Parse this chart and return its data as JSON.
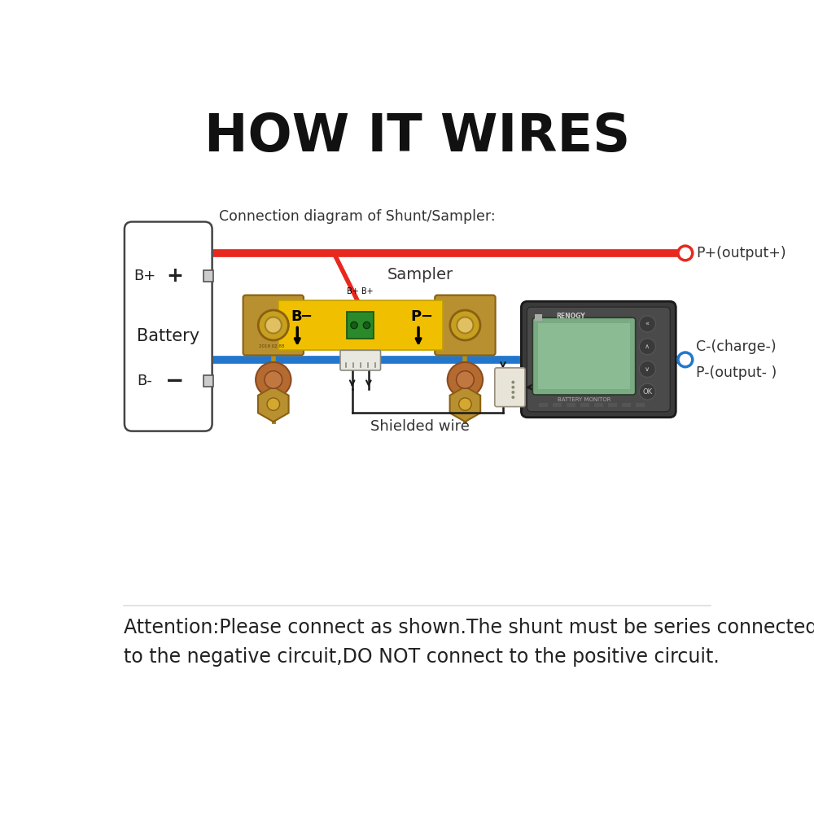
{
  "title": "HOW IT WIRES",
  "title_fontsize": 46,
  "background_color": "#ffffff",
  "attention_text_line1": "Attention:Please connect as shown.The shunt must be series connected",
  "attention_text_line2": "to the negative circuit,DO NOT connect to the positive circuit.",
  "attention_fontsize": 17,
  "connection_diagram_text": "Connection diagram of Shunt/Sampler:",
  "p_plus_label": "P+(output+)",
  "sampler_label": "Sampler",
  "c_minus_label": "C-(charge-)",
  "p_minus_label": "P-(output- )",
  "shielded_wire_label": "Shielded wire",
  "battery_label": "Battery",
  "b_plus_label": "B+",
  "b_minus_label": "B-",
  "red_color": "#e8281e",
  "blue_color": "#2277cc",
  "black_color": "#1a1a1a",
  "yellow_color": "#f0c000",
  "gold_color": "#b89030",
  "gold_light": "#d4a830",
  "copper_color": "#b56a30"
}
